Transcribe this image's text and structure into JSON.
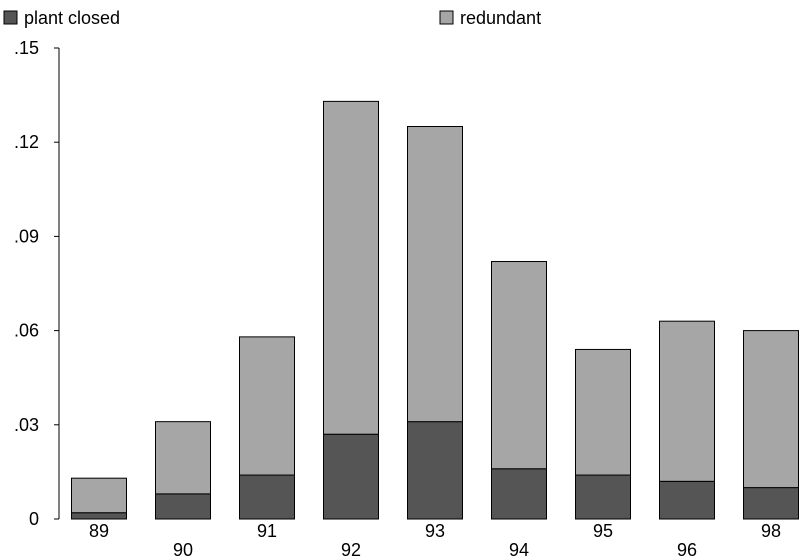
{
  "chart_data": {
    "type": "bar",
    "stacked": true,
    "categories": [
      "89",
      "90",
      "91",
      "92",
      "93",
      "94",
      "95",
      "96",
      "98"
    ],
    "series": [
      {
        "name": "plant closed",
        "color": "#555555",
        "values": [
          0.002,
          0.008,
          0.014,
          0.027,
          0.031,
          0.016,
          0.014,
          0.012,
          0.01
        ]
      },
      {
        "name": "redundant",
        "color": "#a6a6a6",
        "values": [
          0.011,
          0.023,
          0.044,
          0.106,
          0.094,
          0.066,
          0.04,
          0.051,
          0.05
        ]
      }
    ],
    "ylim": [
      0,
      0.15
    ],
    "yticks": [
      0,
      0.03,
      0.06,
      0.09,
      0.12,
      0.15
    ],
    "ytick_labels": [
      "0",
      ".03",
      ".06",
      ".09",
      ".12",
      ".15"
    ],
    "xlabel": "",
    "ylabel": "",
    "legend": "top",
    "grid": false
  }
}
